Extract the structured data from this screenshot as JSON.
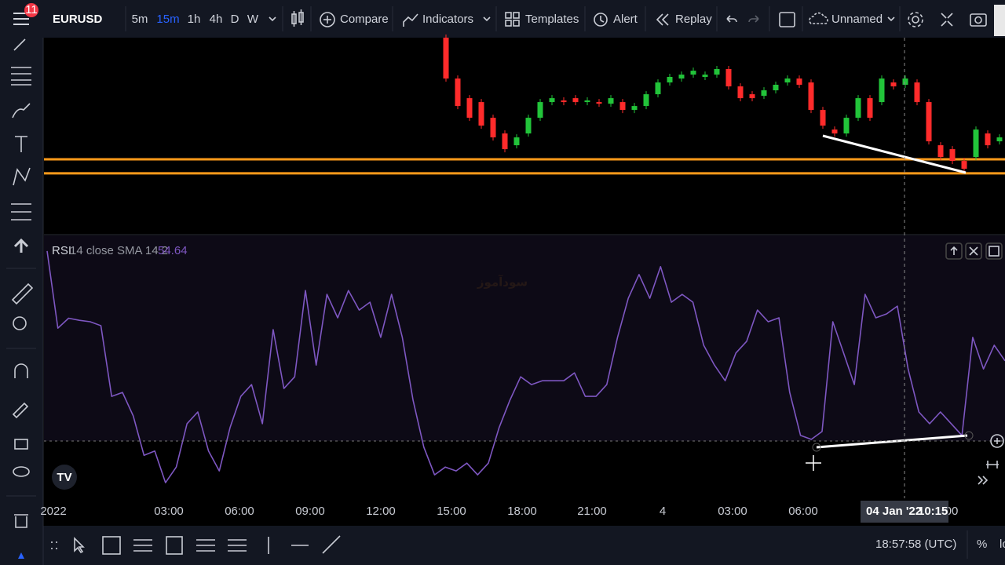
{
  "toolbar": {
    "symbol": "EURUSD",
    "badge": "11",
    "timeframes": [
      "5m",
      "15m",
      "1h",
      "4h",
      "D",
      "W"
    ],
    "compare": "Compare",
    "indicators": "Indicators",
    "templates": "Templates",
    "alert": "Alert",
    "replay": "Replay",
    "layout_name": "Unnamed"
  },
  "watermark": "سودآموز",
  "chart_data": [
    {
      "type": "candlestick",
      "open": [
        1.134,
        1.13275,
        1.13215,
        1.13203,
        1.13155,
        1.13107,
        1.13071,
        1.13107,
        1.13155,
        1.13203,
        1.13208,
        1.13215,
        1.13203,
        1.13203,
        1.13198,
        1.13203,
        1.13179,
        1.13191,
        1.13227,
        1.13263,
        1.13275,
        1.13287,
        1.1328,
        1.13287,
        1.13304,
        1.13251,
        1.13227,
        1.13222,
        1.13239,
        1.13263,
        1.13275,
        1.13263,
        1.13179,
        1.13119,
        1.13107,
        1.13155,
        1.13215,
        1.13203,
        1.13263,
        1.13256,
        1.13263,
        1.13203,
        1.13071,
        1.13059,
        1.13023,
        1.13035,
        1.13107,
        1.13083
      ],
      "close": [
        1.13275,
        1.13191,
        1.13155,
        1.13131,
        1.13095,
        1.13059,
        1.13095,
        1.13155,
        1.13203,
        1.13215,
        1.13203,
        1.13203,
        1.13208,
        1.13198,
        1.13215,
        1.13179,
        1.13191,
        1.13227,
        1.13263,
        1.1328,
        1.13287,
        1.13299,
        1.13287,
        1.13304,
        1.13251,
        1.13215,
        1.13215,
        1.13239,
        1.13256,
        1.13275,
        1.13256,
        1.13179,
        1.13131,
        1.13107,
        1.13155,
        1.13215,
        1.13155,
        1.13275,
        1.13251,
        1.13275,
        1.13203,
        1.13083,
        1.13035,
        1.13023,
        1.12999,
        1.13119,
        1.13071,
        1.13095
      ],
      "up_color": "#22c43a",
      "down_color": "#ff2b2b",
      "ylim": [
        1.128,
        1.134
      ],
      "hlines": [
        1.13028,
        1.12985
      ],
      "hline_color": "#ff9a1a"
    },
    {
      "type": "line",
      "name": "RSI",
      "params": "14 close SMA 14 2",
      "last_value": 54.64,
      "color": "#7e57c2",
      "ylim": [
        14,
        88
      ],
      "values": [
        83.6,
        61.9,
        64.7,
        64.1,
        63.7,
        62.6,
        42.7,
        43.8,
        37.2,
        26.1,
        27.3,
        18.4,
        22.8,
        35,
        38.3,
        27.3,
        21.7,
        33.9,
        42.7,
        46,
        35,
        61.5,
        44.9,
        48.2,
        72.5,
        51.5,
        71.4,
        64.8,
        72.5,
        67,
        69.2,
        59.3,
        71.4,
        59.3,
        41.6,
        28.4,
        20.6,
        22.8,
        21.7,
        23.9,
        20.6,
        23.9,
        33.9,
        41.6,
        48.2,
        46,
        47.1,
        47.1,
        47.1,
        49.3,
        42.7,
        42.7,
        46,
        59.3,
        70.3,
        77,
        70.3,
        79.2,
        69.2,
        71.4,
        69.2,
        57.1,
        51.5,
        47.1,
        54.9,
        58.2,
        67,
        63.7,
        64.8,
        43.8,
        31.7,
        30.6,
        32.8,
        63.7,
        54.9,
        46,
        71.4,
        64.8,
        65.9,
        68.1,
        50.4,
        38.3,
        35,
        38.3,
        35,
        31.7,
        59.3,
        50.4,
        57.1,
        52.7
      ]
    }
  ],
  "time_axis": {
    "labels": [
      "2022",
      "03:00",
      "06:00",
      "09:00",
      "12:00",
      "15:00",
      "18:00",
      "21:00",
      "4",
      "03:00",
      "06:00",
      "00"
    ],
    "crosshair_date": "04 Jan '22",
    "crosshair_time": "10:15"
  },
  "status": {
    "clock": "18:57:58 (UTC)",
    "percent": "%",
    "log": "lo"
  }
}
